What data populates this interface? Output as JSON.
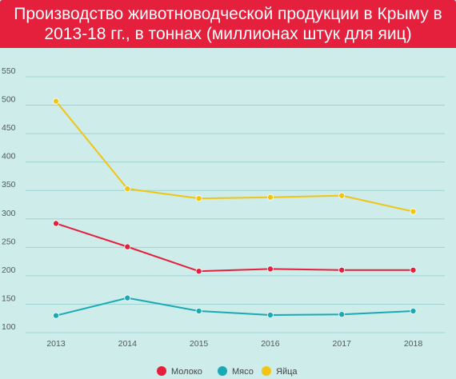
{
  "title": "Производство животноводческой продукции в Крыму в 2013-18 гг., в тоннах (миллионах штук для яиц)",
  "colors": {
    "title_bg": "#e4203d",
    "plot_bg": "#cdecea",
    "gridline": "#9fd3d2",
    "milk": "#e4203d",
    "meat": "#1aa9b5",
    "eggs": "#f2c414"
  },
  "chart_data": {
    "type": "line",
    "title": "Производство животноводческой продукции в Крыму в 2013-18 гг., в тоннах (миллионах штук для яиц)",
    "x": [
      "2013",
      "2014",
      "2015",
      "2016",
      "2017",
      "2018"
    ],
    "yticks": [
      100,
      150,
      200,
      250,
      300,
      350,
      400,
      450,
      500,
      550
    ],
    "ylim": [
      100,
      550
    ],
    "grid": true,
    "legend_position": "bottom",
    "series": [
      {
        "name": "Молоко",
        "color": "#e4203d",
        "values": [
          292,
          251,
          208,
          212,
          210,
          210
        ]
      },
      {
        "name": "Мясо",
        "color": "#1aa9b5",
        "values": [
          130,
          161,
          138,
          131,
          132,
          138
        ]
      },
      {
        "name": "Яйца",
        "color": "#f2c414",
        "values": [
          507,
          353,
          336,
          338,
          341,
          313
        ]
      }
    ]
  }
}
